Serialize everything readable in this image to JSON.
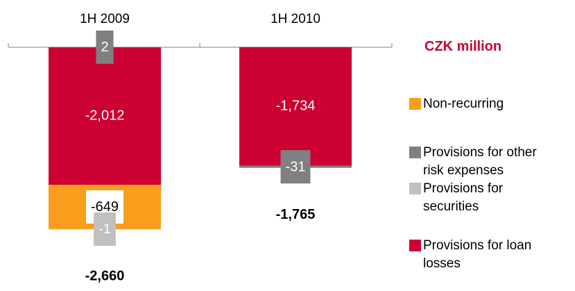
{
  "chart_data": {
    "type": "stacked_bar",
    "unit_label": "CZK million",
    "categories": [
      "1H 2009",
      "1H 2010"
    ],
    "series": [
      {
        "name": "Non-recurring",
        "color": "#f99d1c",
        "values": [
          -649,
          null
        ],
        "value_labels": [
          "-649",
          null
        ]
      },
      {
        "name": "Provisions for other risk expenses",
        "color": "#808080",
        "values": [
          2,
          -31
        ]
      },
      {
        "name": "Provisions for securities",
        "color": "#c0c0c0",
        "values": [
          -1,
          null
        ]
      },
      {
        "name": "Provisions for loan losses",
        "color": "#cc0033",
        "values": [
          -2012,
          -1734
        ],
        "value_labels": [
          "-2,012",
          "-1,734"
        ]
      }
    ],
    "totals": [
      -2660,
      -1765
    ],
    "total_labels": [
      "-2,660",
      "-1,765"
    ],
    "ylim": [
      -3400,
      300
    ]
  }
}
